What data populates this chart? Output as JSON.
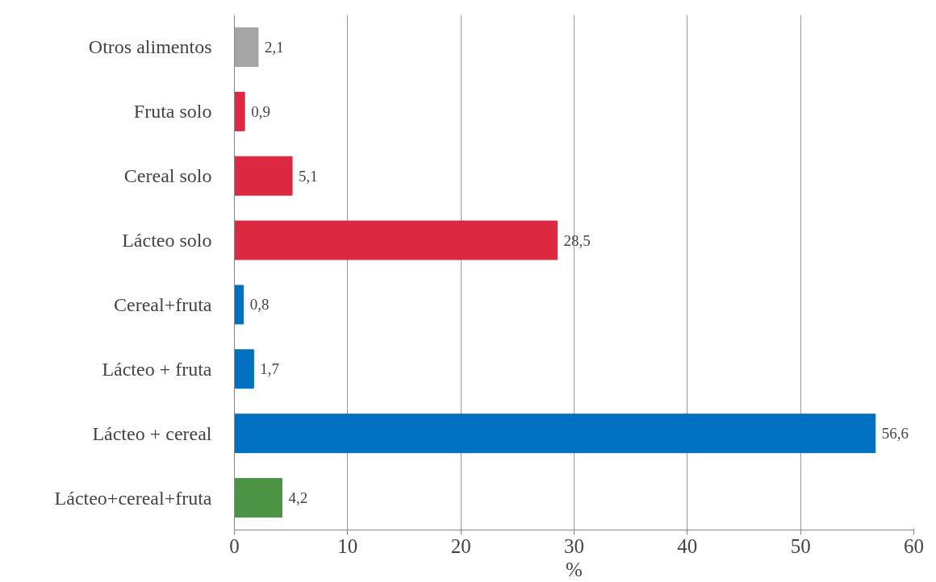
{
  "chart_data": {
    "type": "bar",
    "orientation": "horizontal",
    "xlabel": "%",
    "categories": [
      "Otros alimentos",
      "Fruta solo",
      "Cereal solo",
      "Lácteo solo",
      "Cereal+fruta",
      "Lácteo + fruta",
      "Lácteo + cereal",
      "Lácteo+cereal+fruta"
    ],
    "values": [
      2.1,
      0.9,
      5.1,
      28.5,
      0.8,
      1.7,
      56.6,
      4.2
    ],
    "value_labels": [
      "2,1",
      "0,9",
      "5,1",
      "28,5",
      "0,8",
      "1,7",
      "56,6",
      "4,2"
    ],
    "colors": [
      "#a5a5a5",
      "#dc2840",
      "#dc2840",
      "#dc2840",
      "#0070c0",
      "#0070c0",
      "#0070c0",
      "#4a9444"
    ],
    "xlim": [
      0,
      60
    ],
    "xticks": [
      0,
      10,
      20,
      30,
      40,
      50,
      60
    ],
    "grid": "x"
  }
}
